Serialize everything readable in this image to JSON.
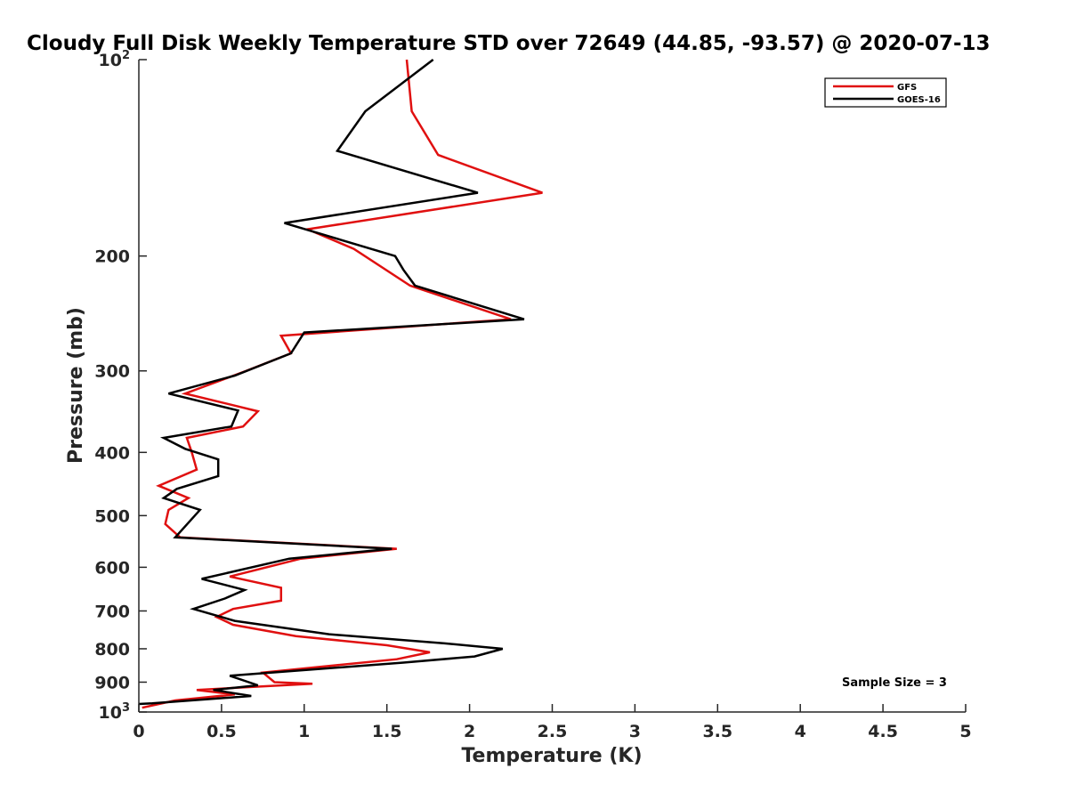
{
  "chart_data": {
    "type": "line",
    "title": "Cloudy Full Disk Weekly Temperature STD over 72649 (44.85, -93.57) @ 2020-07-13",
    "xlabel": "Temperature (K)",
    "ylabel": "Pressure (mb)",
    "xlim": [
      0,
      5
    ],
    "ylim": [
      100,
      1000
    ],
    "y_scale": "log",
    "y_reversed": true,
    "grid": false,
    "legend_position": "top-right",
    "x_ticks": [
      {
        "v": 0,
        "label": "0"
      },
      {
        "v": 0.5,
        "label": "0.5"
      },
      {
        "v": 1,
        "label": "1"
      },
      {
        "v": 1.5,
        "label": "1.5"
      },
      {
        "v": 2,
        "label": "2"
      },
      {
        "v": 2.5,
        "label": "2.5"
      },
      {
        "v": 3,
        "label": "3"
      },
      {
        "v": 3.5,
        "label": "3.5"
      },
      {
        "v": 4,
        "label": "4"
      },
      {
        "v": 4.5,
        "label": "4.5"
      },
      {
        "v": 5,
        "label": "5"
      }
    ],
    "y_ticks": [
      {
        "v": 200,
        "label": "200"
      },
      {
        "v": 300,
        "label": "300"
      },
      {
        "v": 400,
        "label": "400"
      },
      {
        "v": 500,
        "label": "500"
      },
      {
        "v": 600,
        "label": "600"
      },
      {
        "v": 700,
        "label": "700"
      },
      {
        "v": 800,
        "label": "800"
      },
      {
        "v": 900,
        "label": "900"
      }
    ],
    "y_ticks_power": [
      {
        "v": 100,
        "base": "10",
        "exp": "2"
      },
      {
        "v": 1000,
        "base": "10",
        "exp": "3"
      }
    ],
    "annotation": "Sample Size = 3",
    "series": [
      {
        "name": "GFS",
        "color": "#e01010",
        "points": [
          [
            1.62,
            100
          ],
          [
            1.65,
            120
          ],
          [
            1.81,
            140
          ],
          [
            2.44,
            160
          ],
          [
            1.02,
            182
          ],
          [
            1.3,
            195
          ],
          [
            1.64,
            222
          ],
          [
            2.25,
            250
          ],
          [
            0.86,
            265
          ],
          [
            0.92,
            282
          ],
          [
            0.65,
            300
          ],
          [
            0.28,
            325
          ],
          [
            0.72,
            346
          ],
          [
            0.63,
            365
          ],
          [
            0.29,
            380
          ],
          [
            0.32,
            400
          ],
          [
            0.35,
            425
          ],
          [
            0.12,
            450
          ],
          [
            0.3,
            470
          ],
          [
            0.18,
            490
          ],
          [
            0.16,
            515
          ],
          [
            0.25,
            540
          ],
          [
            1.56,
            562
          ],
          [
            0.98,
            582
          ],
          [
            0.55,
            620
          ],
          [
            0.86,
            645
          ],
          [
            0.86,
            675
          ],
          [
            0.57,
            695
          ],
          [
            0.47,
            715
          ],
          [
            0.57,
            735
          ],
          [
            0.95,
            765
          ],
          [
            1.5,
            790
          ],
          [
            1.76,
            810
          ],
          [
            1.56,
            830
          ],
          [
            0.75,
            870
          ],
          [
            0.82,
            900
          ],
          [
            1.05,
            905
          ],
          [
            0.35,
            925
          ],
          [
            0.58,
            940
          ],
          [
            0.22,
            960
          ],
          [
            0.02,
            985
          ]
        ]
      },
      {
        "name": "GOES-16",
        "color": "#000000",
        "points": [
          [
            1.78,
            100
          ],
          [
            1.37,
            120
          ],
          [
            1.2,
            138
          ],
          [
            2.05,
            160
          ],
          [
            0.88,
            178
          ],
          [
            1.55,
            200
          ],
          [
            1.6,
            210
          ],
          [
            1.67,
            222
          ],
          [
            2.33,
            250
          ],
          [
            1.0,
            262
          ],
          [
            0.92,
            282
          ],
          [
            0.58,
            305
          ],
          [
            0.18,
            325
          ],
          [
            0.6,
            345
          ],
          [
            0.56,
            365
          ],
          [
            0.15,
            380
          ],
          [
            0.28,
            395
          ],
          [
            0.48,
            410
          ],
          [
            0.48,
            435
          ],
          [
            0.23,
            455
          ],
          [
            0.15,
            470
          ],
          [
            0.37,
            490
          ],
          [
            0.22,
            540
          ],
          [
            1.53,
            562
          ],
          [
            0.91,
            582
          ],
          [
            0.38,
            625
          ],
          [
            0.64,
            650
          ],
          [
            0.52,
            670
          ],
          [
            0.33,
            695
          ],
          [
            0.58,
            725
          ],
          [
            1.15,
            760
          ],
          [
            1.85,
            785
          ],
          [
            2.2,
            800
          ],
          [
            2.03,
            822
          ],
          [
            1.6,
            840
          ],
          [
            0.55,
            880
          ],
          [
            0.72,
            910
          ],
          [
            0.45,
            925
          ],
          [
            0.68,
            945
          ],
          [
            0.08,
            970
          ],
          [
            0.0,
            972
          ]
        ]
      }
    ]
  }
}
